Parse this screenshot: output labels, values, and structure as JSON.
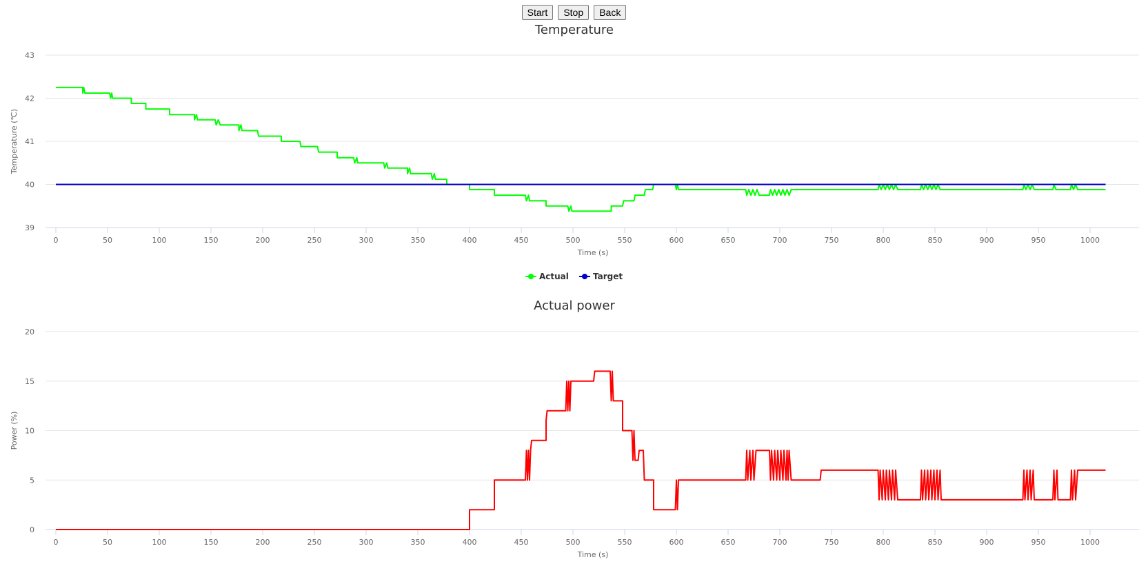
{
  "toolbar": {
    "start_label": "Start",
    "stop_label": "Stop",
    "back_label": "Back"
  },
  "chart_data": [
    {
      "type": "line",
      "title": "Temperature",
      "xlabel": "Time (s)",
      "ylabel": "Temperature (℃)",
      "xlim": [
        0,
        1020
      ],
      "ylim": [
        39,
        43
      ],
      "xticks": [
        0,
        50,
        100,
        150,
        200,
        250,
        300,
        350,
        400,
        450,
        500,
        550,
        600,
        650,
        700,
        750,
        800,
        850,
        900,
        950,
        1000
      ],
      "yticks": [
        39,
        40,
        41,
        42,
        43
      ],
      "grid": true,
      "legend": "bottom-center",
      "series": [
        {
          "name": "Actual",
          "color": "#00ff00",
          "points": [
            [
              0,
              42.25
            ],
            [
              26,
              42.25
            ],
            [
              26,
              42.12
            ],
            [
              27,
              42.25
            ],
            [
              28,
              42.12
            ],
            [
              52,
              42.12
            ],
            [
              53,
              42.0
            ],
            [
              54,
              42.12
            ],
            [
              55,
              42.0
            ],
            [
              73,
              42.0
            ],
            [
              73,
              41.88
            ],
            [
              87,
              41.88
            ],
            [
              87,
              41.75
            ],
            [
              110,
              41.75
            ],
            [
              110,
              41.62
            ],
            [
              134,
              41.62
            ],
            [
              134,
              41.5
            ],
            [
              136,
              41.62
            ],
            [
              137,
              41.5
            ],
            [
              154,
              41.5
            ],
            [
              155,
              41.38
            ],
            [
              157,
              41.5
            ],
            [
              159,
              41.38
            ],
            [
              177,
              41.38
            ],
            [
              177,
              41.25
            ],
            [
              179,
              41.38
            ],
            [
              180,
              41.25
            ],
            [
              195,
              41.25
            ],
            [
              196,
              41.12
            ],
            [
              218,
              41.12
            ],
            [
              218,
              41.0
            ],
            [
              236,
              41.0
            ],
            [
              237,
              40.88
            ],
            [
              253,
              40.88
            ],
            [
              254,
              40.75
            ],
            [
              272,
              40.75
            ],
            [
              272,
              40.62
            ],
            [
              288,
              40.62
            ],
            [
              289,
              40.5
            ],
            [
              291,
              40.62
            ],
            [
              292,
              40.5
            ],
            [
              317,
              40.5
            ],
            [
              318,
              40.38
            ],
            [
              320,
              40.5
            ],
            [
              321,
              40.38
            ],
            [
              340,
              40.38
            ],
            [
              340,
              40.25
            ],
            [
              342,
              40.38
            ],
            [
              343,
              40.25
            ],
            [
              363,
              40.25
            ],
            [
              364,
              40.12
            ],
            [
              366,
              40.25
            ],
            [
              367,
              40.12
            ],
            [
              378,
              40.12
            ],
            [
              378,
              40.0
            ],
            [
              400,
              40.0
            ],
            [
              400,
              39.88
            ],
            [
              424,
              39.88
            ],
            [
              424,
              39.75
            ],
            [
              454,
              39.75
            ],
            [
              455,
              39.62
            ],
            [
              457,
              39.75
            ],
            [
              458,
              39.62
            ],
            [
              474,
              39.62
            ],
            [
              474,
              39.5
            ],
            [
              495,
              39.5
            ],
            [
              496,
              39.38
            ],
            [
              498,
              39.5
            ],
            [
              499,
              39.38
            ],
            [
              537,
              39.38
            ],
            [
              537,
              39.5
            ],
            [
              548,
              39.5
            ],
            [
              549,
              39.62
            ],
            [
              559,
              39.62
            ],
            [
              560,
              39.75
            ],
            [
              569,
              39.75
            ],
            [
              570,
              39.88
            ],
            [
              577,
              39.88
            ],
            [
              578,
              40.0
            ],
            [
              599,
              40.0
            ],
            [
              600,
              39.88
            ],
            [
              601,
              40.0
            ],
            [
              602,
              39.88
            ],
            [
              667,
              39.88
            ],
            [
              668,
              39.75
            ],
            [
              670,
              39.88
            ],
            [
              672,
              39.75
            ],
            [
              674,
              39.88
            ],
            [
              676,
              39.75
            ],
            [
              678,
              39.88
            ],
            [
              680,
              39.75
            ],
            [
              690,
              39.75
            ],
            [
              691,
              39.88
            ],
            [
              693,
              39.75
            ],
            [
              695,
              39.88
            ],
            [
              697,
              39.75
            ],
            [
              699,
              39.88
            ],
            [
              701,
              39.75
            ],
            [
              703,
              39.88
            ],
            [
              705,
              39.75
            ],
            [
              707,
              39.88
            ],
            [
              709,
              39.75
            ],
            [
              711,
              39.88
            ],
            [
              795,
              39.88
            ],
            [
              796,
              40.0
            ],
            [
              798,
              39.88
            ],
            [
              800,
              40.0
            ],
            [
              802,
              39.88
            ],
            [
              804,
              40.0
            ],
            [
              806,
              39.88
            ],
            [
              808,
              40.0
            ],
            [
              810,
              39.88
            ],
            [
              812,
              40.0
            ],
            [
              814,
              39.88
            ],
            [
              836,
              39.88
            ],
            [
              837,
              40.0
            ],
            [
              839,
              39.88
            ],
            [
              841,
              40.0
            ],
            [
              843,
              39.88
            ],
            [
              845,
              40.0
            ],
            [
              847,
              39.88
            ],
            [
              849,
              40.0
            ],
            [
              851,
              39.88
            ],
            [
              853,
              40.0
            ],
            [
              855,
              39.88
            ],
            [
              935,
              39.88
            ],
            [
              936,
              40.0
            ],
            [
              938,
              39.88
            ],
            [
              940,
              40.0
            ],
            [
              942,
              39.88
            ],
            [
              944,
              40.0
            ],
            [
              946,
              39.88
            ],
            [
              964,
              39.88
            ],
            [
              965,
              40.0
            ],
            [
              967,
              39.88
            ],
            [
              981,
              39.88
            ],
            [
              982,
              40.0
            ],
            [
              984,
              39.88
            ],
            [
              986,
              40.0
            ],
            [
              988,
              39.88
            ],
            [
              1015,
              39.88
            ]
          ]
        },
        {
          "name": "Target",
          "color": "#0000cc",
          "points": [
            [
              0,
              40.0
            ],
            [
              1015,
              40.0
            ]
          ]
        }
      ]
    },
    {
      "type": "line",
      "title": "Actual power",
      "xlabel": "Time (s)",
      "ylabel": "Power (%)",
      "xlim": [
        0,
        1020
      ],
      "ylim": [
        0,
        20
      ],
      "xticks": [
        0,
        50,
        100,
        150,
        200,
        250,
        300,
        350,
        400,
        450,
        500,
        550,
        600,
        650,
        700,
        750,
        800,
        850,
        900,
        950,
        1000
      ],
      "yticks": [
        0,
        5,
        10,
        15,
        20
      ],
      "grid": true,
      "series": [
        {
          "color": "#ff0000",
          "points": [
            [
              0,
              0
            ],
            [
              400,
              0
            ],
            [
              400,
              2
            ],
            [
              424,
              2
            ],
            [
              424,
              5
            ],
            [
              454,
              5
            ],
            [
              455,
              8
            ],
            [
              456,
              5
            ],
            [
              457,
              8
            ],
            [
              458,
              5
            ],
            [
              459,
              8
            ],
            [
              460,
              9
            ],
            [
              474,
              9
            ],
            [
              474,
              11
            ],
            [
              475,
              12
            ],
            [
              493,
              12
            ],
            [
              494,
              15
            ],
            [
              495,
              12
            ],
            [
              496,
              15
            ],
            [
              497,
              12
            ],
            [
              498,
              15
            ],
            [
              520,
              15
            ],
            [
              521,
              16
            ],
            [
              536,
              16
            ],
            [
              537,
              13
            ],
            [
              538,
              16
            ],
            [
              539,
              13
            ],
            [
              548,
              13
            ],
            [
              548,
              10
            ],
            [
              557,
              10
            ],
            [
              558,
              7
            ],
            [
              559,
              10
            ],
            [
              560,
              7
            ],
            [
              563,
              7
            ],
            [
              564,
              8
            ],
            [
              568,
              8
            ],
            [
              569,
              5
            ],
            [
              578,
              5
            ],
            [
              578,
              2
            ],
            [
              599,
              2
            ],
            [
              600,
              5
            ],
            [
              601,
              2
            ],
            [
              602,
              5
            ],
            [
              667,
              5
            ],
            [
              668,
              8
            ],
            [
              669,
              5
            ],
            [
              671,
              8
            ],
            [
              672,
              5
            ],
            [
              674,
              8
            ],
            [
              675,
              5
            ],
            [
              677,
              8
            ],
            [
              690,
              8
            ],
            [
              691,
              5
            ],
            [
              692,
              8
            ],
            [
              694,
              5
            ],
            [
              695,
              8
            ],
            [
              697,
              5
            ],
            [
              698,
              8
            ],
            [
              700,
              5
            ],
            [
              701,
              8
            ],
            [
              703,
              5
            ],
            [
              704,
              8
            ],
            [
              706,
              5
            ],
            [
              707,
              8
            ],
            [
              708,
              5
            ],
            [
              709,
              8
            ],
            [
              711,
              5
            ],
            [
              739,
              5
            ],
            [
              740,
              6
            ],
            [
              795,
              6
            ],
            [
              796,
              3
            ],
            [
              797,
              6
            ],
            [
              799,
              3
            ],
            [
              800,
              6
            ],
            [
              802,
              3
            ],
            [
              803,
              6
            ],
            [
              805,
              3
            ],
            [
              806,
              6
            ],
            [
              808,
              3
            ],
            [
              809,
              6
            ],
            [
              811,
              3
            ],
            [
              812,
              6
            ],
            [
              814,
              3
            ],
            [
              836,
              3
            ],
            [
              837,
              6
            ],
            [
              838,
              3
            ],
            [
              840,
              6
            ],
            [
              841,
              3
            ],
            [
              843,
              6
            ],
            [
              844,
              3
            ],
            [
              846,
              6
            ],
            [
              847,
              3
            ],
            [
              849,
              6
            ],
            [
              850,
              3
            ],
            [
              852,
              6
            ],
            [
              853,
              3
            ],
            [
              855,
              6
            ],
            [
              856,
              3
            ],
            [
              935,
              3
            ],
            [
              936,
              6
            ],
            [
              937,
              3
            ],
            [
              939,
              6
            ],
            [
              940,
              3
            ],
            [
              942,
              6
            ],
            [
              943,
              3
            ],
            [
              945,
              6
            ],
            [
              946,
              3
            ],
            [
              964,
              3
            ],
            [
              965,
              6
            ],
            [
              966,
              3
            ],
            [
              968,
              6
            ],
            [
              969,
              3
            ],
            [
              981,
              3
            ],
            [
              982,
              6
            ],
            [
              983,
              3
            ],
            [
              985,
              6
            ],
            [
              986,
              3
            ],
            [
              988,
              6
            ],
            [
              1015,
              6
            ]
          ]
        }
      ]
    }
  ]
}
